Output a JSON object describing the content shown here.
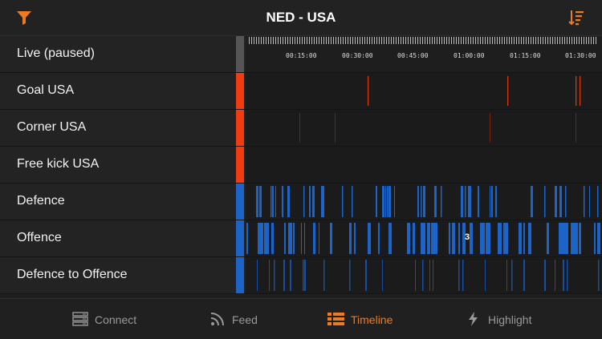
{
  "header": {
    "title": "NED - USA",
    "accent_color": "#f07a20",
    "left_icon": "filter-icon",
    "right_icon": "sort-icon"
  },
  "timeline": {
    "time_labels": [
      "00:15:00",
      "00:30:00",
      "00:45:00",
      "01:00:00",
      "01:15:00",
      "01:30:00"
    ],
    "rows": [
      {
        "label": "Live (paused)",
        "color": "#555555"
      },
      {
        "label": "Goal USA",
        "color": "#f23b0e"
      },
      {
        "label": "Corner USA",
        "color": "#f23b0e"
      },
      {
        "label": "Free kick USA",
        "color": "#f23b0e"
      },
      {
        "label": "Defence",
        "color": "#1c64c7"
      },
      {
        "label": "Offence",
        "color": "#1c64c7"
      },
      {
        "label": "Defence to Offence",
        "color": "#1c64c7"
      }
    ],
    "offence_badges": [
      "3"
    ]
  },
  "tabs": [
    {
      "label": "Connect",
      "icon": "server-icon",
      "active": false
    },
    {
      "label": "Feed",
      "icon": "rss-icon",
      "active": false
    },
    {
      "label": "Timeline",
      "icon": "list-icon",
      "active": true
    },
    {
      "label": "Highlight",
      "icon": "lightning-icon",
      "active": false
    }
  ]
}
